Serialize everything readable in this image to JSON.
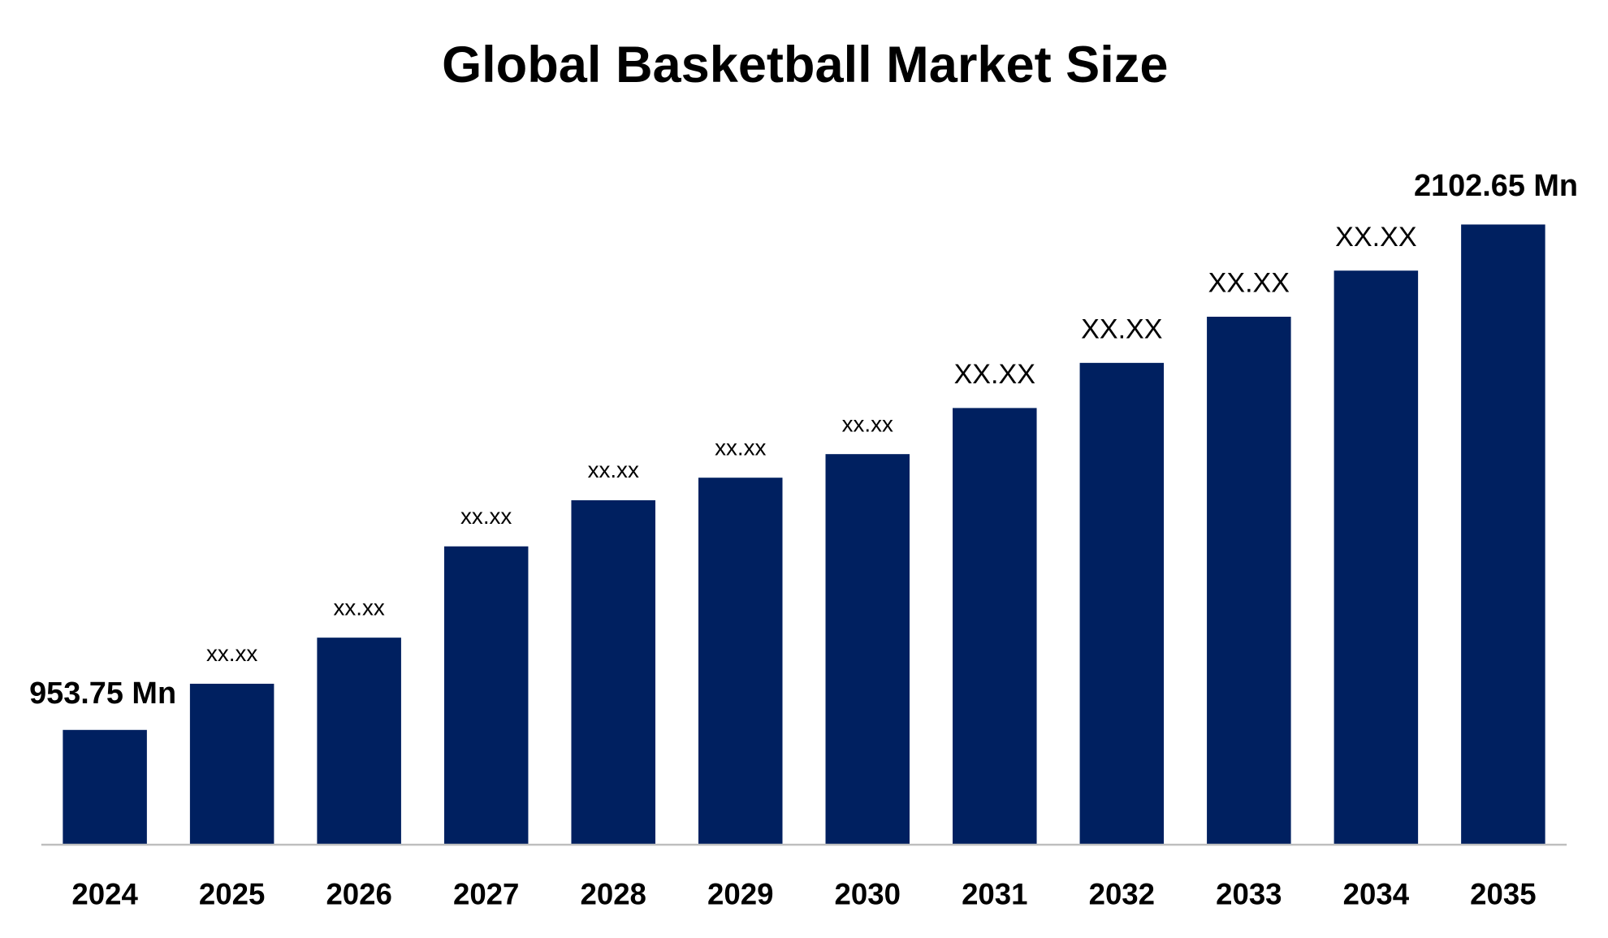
{
  "chart_data": {
    "type": "bar",
    "title": "Global Basketball Market Size",
    "xlabel": "",
    "ylabel": "",
    "categories": [
      "2024",
      "2025",
      "2026",
      "2027",
      "2028",
      "2029",
      "2030",
      "2031",
      "2032",
      "2033",
      "2034",
      "2035"
    ],
    "values": [
      953.75,
      1058.7,
      1163.5,
      1371.0,
      1475.8,
      1527.1,
      1580.7,
      1685.5,
      1788.1,
      1893.0,
      1997.8,
      2102.65
    ],
    "data_labels": [
      "953.75 Mn",
      "xx.xx",
      "xx.xx",
      "xx.xx",
      "xx.xx",
      "xx.xx",
      "xx.xx",
      "XX.XX",
      "XX.XX",
      "XX.XX",
      "XX.XX",
      "2102.65 Mn"
    ],
    "bar_color": "#002060",
    "axis_color": "#bfbfbf",
    "grid": false,
    "legend": "none"
  }
}
